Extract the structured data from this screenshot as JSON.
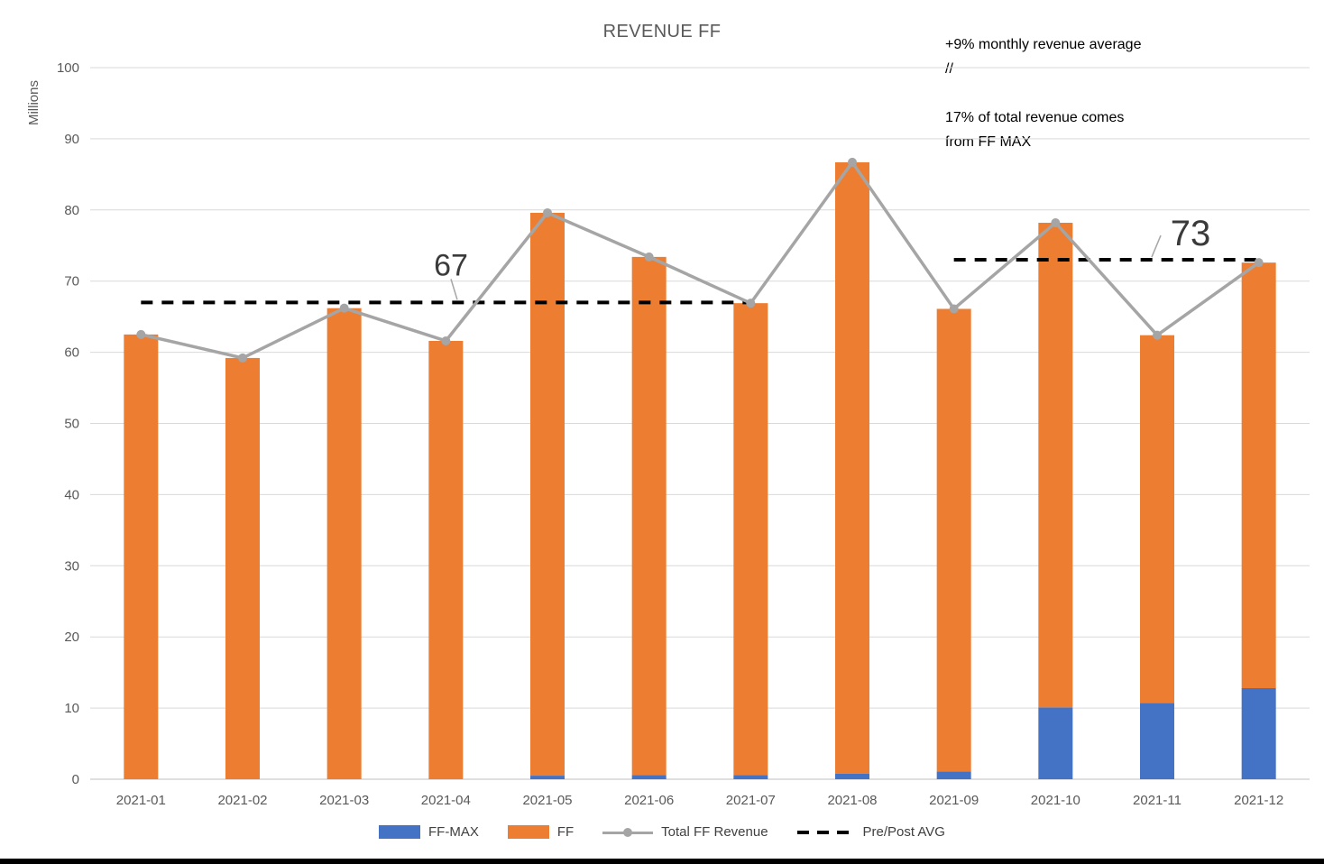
{
  "chart_data": {
    "type": "bar",
    "subtype": "stacked-bar-with-line",
    "title": "REVENUE FF",
    "ylabel": "Millions",
    "xlabel": "",
    "ylim": [
      0,
      100
    ],
    "ytick_step": 10,
    "grid": true,
    "grid_color": "#D9D9D9",
    "axis_line_color": "#BFBFBF",
    "axis_text_color": "#595959",
    "categories": [
      "2021-01",
      "2021-02",
      "2021-03",
      "2021-04",
      "2021-05",
      "2021-06",
      "2021-07",
      "2021-08",
      "2021-09",
      "2021-10",
      "2021-11",
      "2021-12"
    ],
    "series": [
      {
        "name": "FF-MAX",
        "kind": "bar",
        "color": "#4472C4",
        "values": [
          0,
          0,
          0,
          0,
          0.5,
          0.6,
          0.6,
          0.8,
          1.1,
          10.1,
          10.7,
          12.8
        ]
      },
      {
        "name": "FF",
        "kind": "bar",
        "color": "#ED7D31",
        "values": [
          62.5,
          59.2,
          66.2,
          61.6,
          79.1,
          72.8,
          66.3,
          85.9,
          65.0,
          68.1,
          51.7,
          59.8
        ]
      },
      {
        "name": "Total FF Revenue",
        "kind": "line",
        "color": "#A5A5A5",
        "values": [
          62.5,
          59.2,
          66.2,
          61.6,
          79.6,
          73.4,
          66.9,
          86.7,
          66.1,
          78.2,
          62.4,
          72.6
        ]
      }
    ],
    "avg_lines": [
      {
        "name": "Pre/Post AVG",
        "label": "67",
        "value": 67,
        "from": "2021-01",
        "to": "2021-07",
        "color": "#000000"
      },
      {
        "name": "Pre/Post AVG",
        "label": "73",
        "value": 73,
        "from": "2021-09",
        "to": "2021-12",
        "color": "#000000"
      }
    ],
    "legend_position": "bottom"
  },
  "annotations": {
    "note1": "+9% monthly revenue average //",
    "note2": "17% of total revenue comes from FF MAX"
  }
}
